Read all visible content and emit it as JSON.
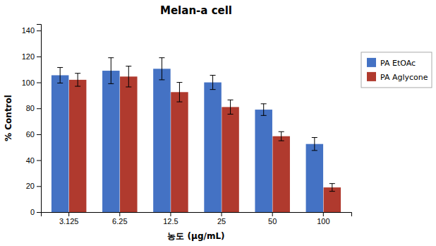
{
  "chart_data": {
    "type": "bar",
    "title": "Melan-a cell",
    "x_label": "농도 (μg/mL)",
    "y_label": "% Control",
    "categories": [
      "3.125",
      "6.25",
      "12.5",
      "25",
      "50",
      "100"
    ],
    "series": [
      {
        "name": "PA EtOAc",
        "color": "#4472C4",
        "values": [
          105.5,
          109.0,
          110.5,
          100.0,
          79.0,
          52.5
        ],
        "errors": [
          6.0,
          10.0,
          8.5,
          5.5,
          4.5,
          5.0
        ]
      },
      {
        "name": "PA Aglycone",
        "color": "#B03A2E",
        "values": [
          102.0,
          104.5,
          92.5,
          81.0,
          58.5,
          19.0
        ],
        "errors": [
          5.0,
          8.0,
          7.5,
          5.5,
          3.5,
          3.0
        ]
      }
    ],
    "ylim": [
      0,
      145
    ],
    "yticks": [
      0,
      20,
      40,
      60,
      80,
      100,
      120,
      140
    ],
    "grid": false,
    "legend": "right"
  }
}
